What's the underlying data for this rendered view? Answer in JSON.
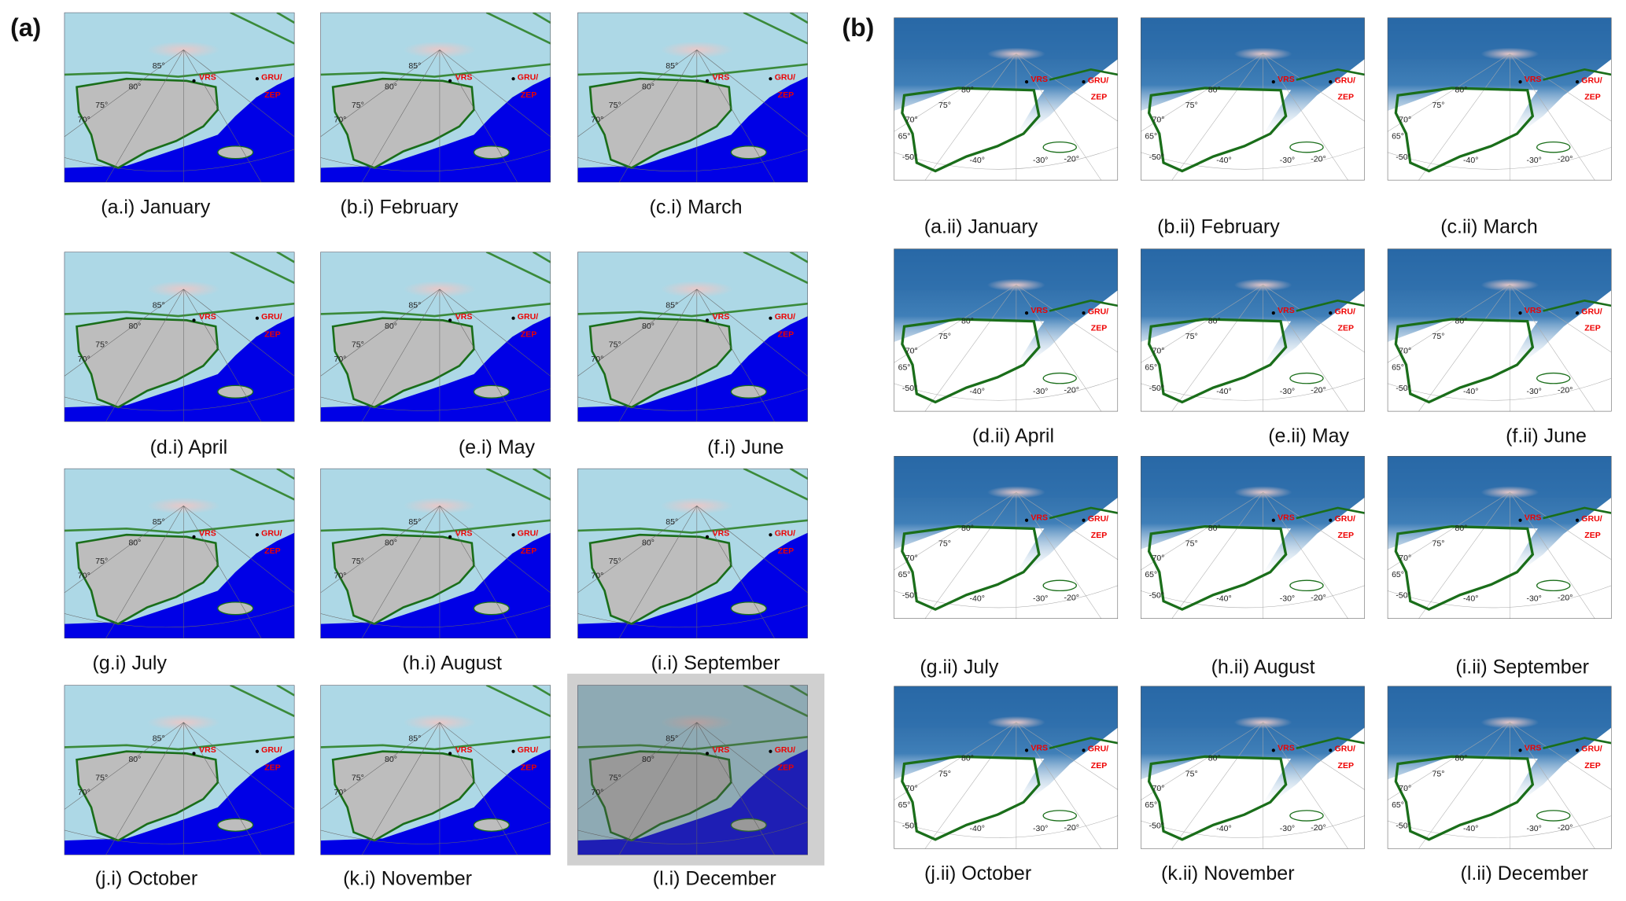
{
  "panels": [
    {
      "label": "(a)",
      "maps": [
        {
          "caption": "(a.i) January"
        },
        {
          "caption": "(b.i) February"
        },
        {
          "caption": "(c.i) March"
        },
        {
          "caption": "(d.i) April"
        },
        {
          "caption": "(e.i) May"
        },
        {
          "caption": "(f.i) June"
        },
        {
          "caption": "(g.i) July"
        },
        {
          "caption": "(h.i) August"
        },
        {
          "caption": "(i.i) September"
        },
        {
          "caption": "(j.i) October"
        },
        {
          "caption": "(k.i) November"
        },
        {
          "caption": "(l.i) December"
        }
      ],
      "lat_labels": [
        "85°",
        "80°",
        "75°",
        "70°"
      ],
      "stations": [
        "VRS",
        "GRU/",
        "ZEP"
      ]
    },
    {
      "label": "(b)",
      "maps": [
        {
          "caption": "(a.ii) January"
        },
        {
          "caption": "(b.ii) February"
        },
        {
          "caption": "(c.ii) March"
        },
        {
          "caption": "(d.ii) April"
        },
        {
          "caption": "(e.ii) May"
        },
        {
          "caption": "(f.ii) June"
        },
        {
          "caption": "(g.ii) July"
        },
        {
          "caption": "(h.ii) August"
        },
        {
          "caption": "(i.ii) September"
        },
        {
          "caption": "(j.ii) October"
        },
        {
          "caption": "(k.ii) November"
        },
        {
          "caption": "(l.ii) December"
        }
      ],
      "lat_labels": [
        "80°",
        "75°",
        "70°",
        "65°"
      ],
      "lon_labels": [
        "-50°",
        "-40°",
        "-30°",
        "-20°"
      ],
      "stations": [
        "VRS",
        "GRU/",
        "ZEP"
      ]
    }
  ]
}
